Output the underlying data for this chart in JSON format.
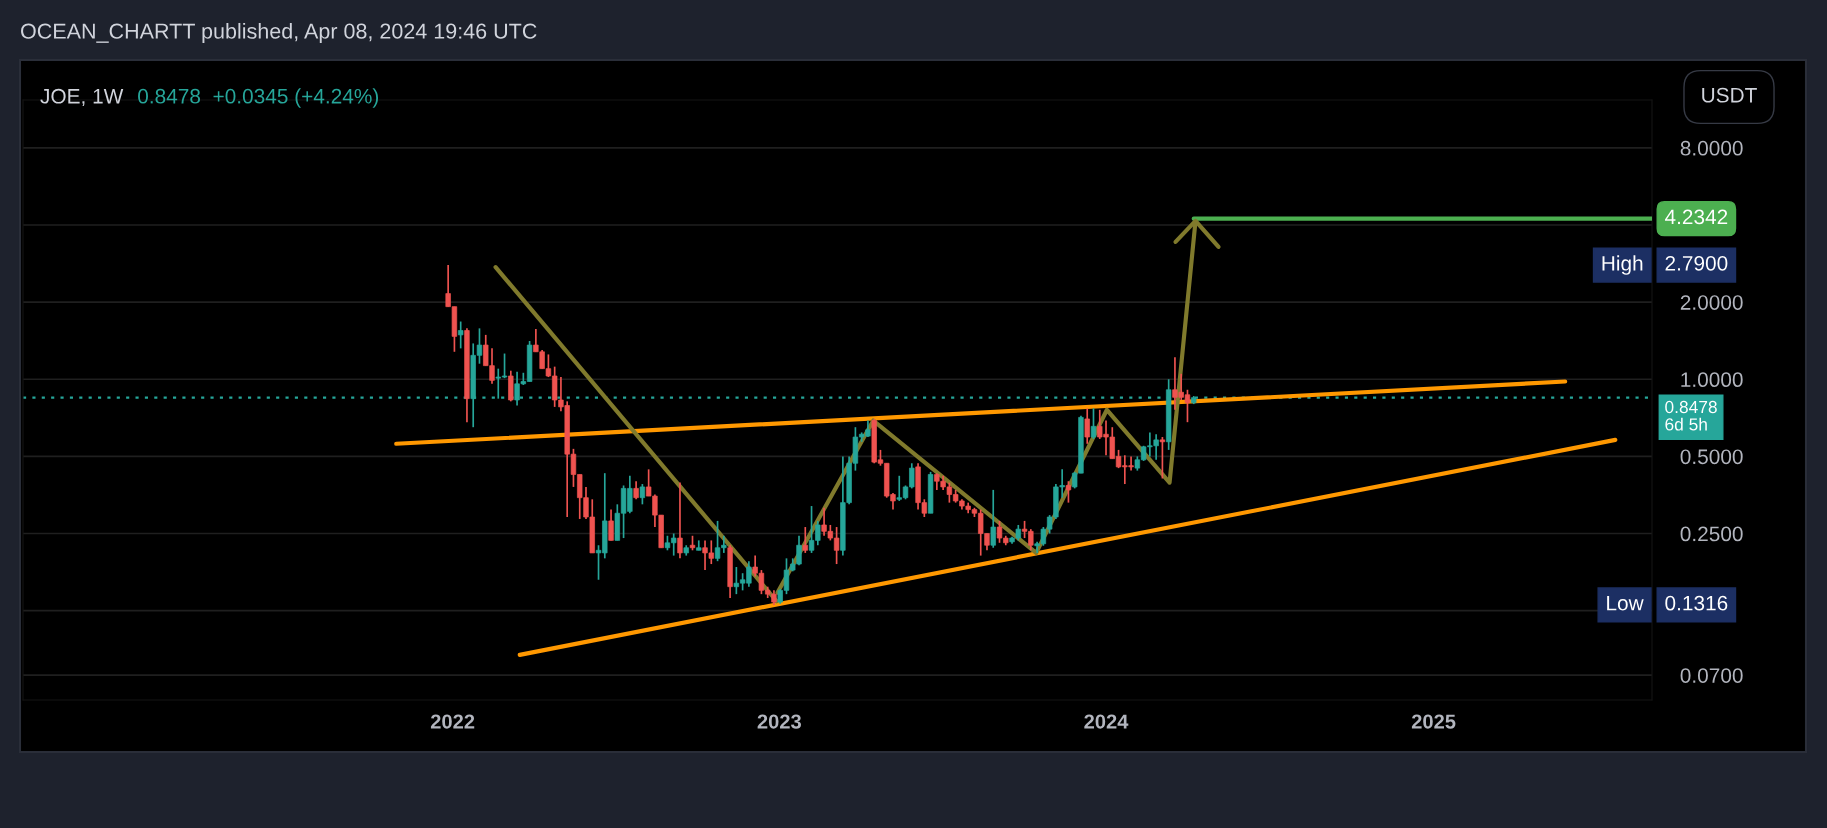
{
  "chart_data": {
    "type": "candlestick",
    "title": "JOE, 1W",
    "subtitle": "0.8478  +0.0345 (+4.24%)",
    "annotations": [
      "OCEAN_CHARTT published, Apr 08, 2024 19:46 UTC",
      "USDT",
      "High",
      "2.7900",
      "Low",
      "0.1316"
    ],
    "colors": [
      "#ef5350",
      "#ef5350",
      "#26a69a",
      "#ef5350",
      "#26a69a",
      "#26a69a",
      "#ef5350",
      "#ef5350",
      "#26a69a",
      "#26a69a",
      "#ef5350",
      "#26a69a",
      "#26a69a",
      "#26a69a",
      "#ef5350",
      "#ef5350",
      "#ef5350",
      "#ef5350",
      "#ef5350",
      "#ef5350",
      "#ef5350",
      "#ef5350",
      "#ef5350",
      "#ef5350",
      "#26a69a",
      "#26a69a",
      "#ef5350",
      "#26a69a",
      "#26a69a",
      "#26a69a",
      "#ef5350",
      "#26a69a",
      "#ef5350",
      "#ef5350",
      "#ef5350",
      "#26a69a",
      "#26a69a",
      "#ef5350",
      "#26a69a",
      "#ef5350",
      "#26a69a",
      "#ef5350",
      "#ef5350",
      "#26a69a",
      "#26a69a",
      "#ef5350",
      "#26a69a",
      "#26a69a",
      "#26a69a",
      "#ef5350",
      "#ef5350",
      "#ef5350",
      "#ef5350",
      "#26a69a",
      "#26a69a",
      "#26a69a",
      "#26a69a",
      "#ef5350",
      "#26a69a",
      "#26a69a",
      "#ef5350",
      "#ef5350",
      "#ef5350",
      "#26a69a",
      "#26a69a",
      "#26a69a",
      "#26a69a",
      "#26a69a",
      "#ef5350",
      "#ef5350",
      "#ef5350",
      "#ef5350",
      "#26a69a",
      "#26a69a",
      "#26a69a",
      "#ef5350",
      "#ef5350",
      "#26a69a",
      "#ef5350",
      "#ef5350",
      "#ef5350",
      "#ef5350",
      "#ef5350",
      "#ef5350",
      "#ef5350",
      "#ef5350",
      "#ef5350",
      "#26a69a",
      "#ef5350",
      "#ef5350",
      "#26a69a",
      "#26a69a",
      "#ef5350",
      "#ef5350",
      "#26a69a",
      "#26a69a",
      "#26a69a",
      "#26a69a",
      "#26a69a",
      "#ef5350",
      "#26a69a",
      "#26a69a",
      "#ef5350",
      "#26a69a",
      "#ef5350",
      "#ef5350",
      "#ef5350",
      "#ef5350",
      "#ef5350",
      "#ef5350",
      "#26a69a",
      "#26a69a",
      "#26a69a",
      "#26a69a",
      "#ef5350",
      "#26a69a",
      "#ef5350",
      "#ef5350",
      "#ef5350",
      "#26a69a"
    ],
    "x": [
      "2021-12-27",
      "2022-01-03",
      "2022-01-10",
      "2022-01-17",
      "2022-01-24",
      "2022-01-31",
      "2022-02-07",
      "2022-02-14",
      "2022-02-21",
      "2022-02-28",
      "2022-03-07",
      "2022-03-14",
      "2022-03-21",
      "2022-03-28",
      "2022-04-04",
      "2022-04-11",
      "2022-04-18",
      "2022-04-25",
      "2022-05-02",
      "2022-05-09",
      "2022-05-16",
      "2022-05-23",
      "2022-05-30",
      "2022-06-06",
      "2022-06-13",
      "2022-06-20",
      "2022-06-27",
      "2022-07-04",
      "2022-07-11",
      "2022-07-18",
      "2022-07-25",
      "2022-08-01",
      "2022-08-08",
      "2022-08-15",
      "2022-08-22",
      "2022-08-29",
      "2022-09-05",
      "2022-09-12",
      "2022-09-19",
      "2022-09-26",
      "2022-10-03",
      "2022-10-10",
      "2022-10-17",
      "2022-10-24",
      "2022-10-31",
      "2022-11-07",
      "2022-11-14",
      "2022-11-21",
      "2022-11-28",
      "2022-12-05",
      "2022-12-12",
      "2022-12-19",
      "2022-12-26",
      "2023-01-02",
      "2023-01-09",
      "2023-01-16",
      "2023-01-23",
      "2023-01-30",
      "2023-02-06",
      "2023-02-13",
      "2023-02-20",
      "2023-02-27",
      "2023-03-06",
      "2023-03-13",
      "2023-03-20",
      "2023-03-27",
      "2023-04-03",
      "2023-04-10",
      "2023-04-17",
      "2023-04-24",
      "2023-05-01",
      "2023-05-08",
      "2023-05-15",
      "2023-05-22",
      "2023-05-29",
      "2023-06-05",
      "2023-06-12",
      "2023-06-19",
      "2023-06-26",
      "2023-07-03",
      "2023-07-10",
      "2023-07-17",
      "2023-07-24",
      "2023-07-31",
      "2023-08-07",
      "2023-08-14",
      "2023-08-21",
      "2023-08-28",
      "2023-09-04",
      "2023-09-11",
      "2023-09-18",
      "2023-09-25",
      "2023-10-02",
      "2023-10-09",
      "2023-10-16",
      "2023-10-23",
      "2023-10-30",
      "2023-11-06",
      "2023-11-13",
      "2023-11-20",
      "2023-11-27",
      "2023-12-04",
      "2023-12-11",
      "2023-12-18",
      "2023-12-25",
      "2024-01-01",
      "2024-01-08",
      "2024-01-15",
      "2024-01-22",
      "2024-01-29",
      "2024-02-05",
      "2024-02-12",
      "2024-02-19",
      "2024-02-26",
      "2024-03-04",
      "2024-03-11",
      "2024-03-18",
      "2024-03-25",
      "2024-04-01",
      "2024-04-08"
    ],
    "ohlc": [
      [
        2.16,
        2.79,
        1.92,
        1.92
      ],
      [
        1.92,
        1.92,
        1.28,
        1.47
      ],
      [
        1.49,
        1.68,
        1.32,
        1.55
      ],
      [
        1.55,
        1.58,
        0.68,
        0.84
      ],
      [
        0.84,
        1.38,
        0.65,
        1.24
      ],
      [
        1.24,
        1.58,
        1.15,
        1.36
      ],
      [
        1.36,
        1.49,
        1.13,
        1.13
      ],
      [
        1.13,
        1.32,
        0.96,
        0.99
      ],
      [
        1.01,
        1.1,
        0.84,
        1.02
      ],
      [
        1.02,
        1.26,
        1.01,
        1.03
      ],
      [
        1.03,
        1.08,
        0.82,
        0.83
      ],
      [
        0.83,
        1.07,
        0.79,
        0.96
      ],
      [
        0.96,
        1.06,
        0.95,
        0.98
      ],
      [
        0.98,
        1.41,
        0.98,
        1.36
      ],
      [
        1.36,
        1.57,
        1.28,
        1.28
      ],
      [
        1.28,
        1.3,
        1.1,
        1.1
      ],
      [
        1.1,
        1.25,
        1.02,
        1.03
      ],
      [
        1.03,
        1.12,
        0.78,
        0.83
      ],
      [
        0.83,
        1.02,
        0.75,
        0.78
      ],
      [
        0.79,
        0.82,
        0.29,
        0.51
      ],
      [
        0.51,
        0.535,
        0.38,
        0.425
      ],
      [
        0.425,
        0.425,
        0.285,
        0.345
      ],
      [
        0.345,
        0.38,
        0.285,
        0.29
      ],
      [
        0.29,
        0.34,
        0.21,
        0.21
      ],
      [
        0.21,
        0.225,
        0.165,
        0.215
      ],
      [
        0.21,
        0.43,
        0.2,
        0.28
      ],
      [
        0.28,
        0.31,
        0.235,
        0.235
      ],
      [
        0.235,
        0.325,
        0.235,
        0.3
      ],
      [
        0.3,
        0.385,
        0.24,
        0.375
      ],
      [
        0.305,
        0.42,
        0.3,
        0.375
      ],
      [
        0.375,
        0.4,
        0.34,
        0.345
      ],
      [
        0.345,
        0.39,
        0.325,
        0.38
      ],
      [
        0.38,
        0.445,
        0.35,
        0.35
      ],
      [
        0.35,
        0.355,
        0.265,
        0.295
      ],
      [
        0.295,
        0.295,
        0.22,
        0.22
      ],
      [
        0.22,
        0.245,
        0.215,
        0.23
      ],
      [
        0.23,
        0.25,
        0.205,
        0.24
      ],
      [
        0.24,
        0.395,
        0.2,
        0.21
      ],
      [
        0.21,
        0.225,
        0.205,
        0.22
      ],
      [
        0.225,
        0.245,
        0.215,
        0.22
      ],
      [
        0.215,
        0.235,
        0.215,
        0.22
      ],
      [
        0.22,
        0.235,
        0.18,
        0.21
      ],
      [
        0.21,
        0.235,
        0.19,
        0.2
      ],
      [
        0.2,
        0.28,
        0.195,
        0.22
      ],
      [
        0.22,
        0.245,
        0.21,
        0.225
      ],
      [
        0.22,
        0.225,
        0.14,
        0.155
      ],
      [
        0.155,
        0.185,
        0.145,
        0.16
      ],
      [
        0.16,
        0.175,
        0.15,
        0.165
      ],
      [
        0.16,
        0.195,
        0.155,
        0.185
      ],
      [
        0.185,
        0.205,
        0.17,
        0.175
      ],
      [
        0.175,
        0.18,
        0.145,
        0.15
      ],
      [
        0.15,
        0.155,
        0.14,
        0.145
      ],
      [
        0.145,
        0.15,
        0.1316,
        0.135
      ],
      [
        0.135,
        0.152,
        0.133,
        0.15
      ],
      [
        0.15,
        0.2,
        0.145,
        0.18
      ],
      [
        0.18,
        0.2,
        0.178,
        0.19
      ],
      [
        0.19,
        0.245,
        0.188,
        0.225
      ],
      [
        0.225,
        0.265,
        0.21,
        0.215
      ],
      [
        0.215,
        0.32,
        0.21,
        0.235
      ],
      [
        0.235,
        0.28,
        0.225,
        0.27
      ],
      [
        0.27,
        0.315,
        0.245,
        0.255
      ],
      [
        0.255,
        0.27,
        0.235,
        0.24
      ],
      [
        0.24,
        0.265,
        0.19,
        0.215
      ],
      [
        0.215,
        0.5,
        0.205,
        0.33
      ],
      [
        0.33,
        0.5,
        0.325,
        0.47
      ],
      [
        0.47,
        0.65,
        0.44,
        0.595
      ],
      [
        0.595,
        0.62,
        0.57,
        0.61
      ],
      [
        0.6,
        0.69,
        0.595,
        0.635
      ],
      [
        0.69,
        0.7,
        0.47,
        0.475
      ],
      [
        0.485,
        0.53,
        0.46,
        0.47
      ],
      [
        0.47,
        0.47,
        0.345,
        0.35
      ],
      [
        0.355,
        0.36,
        0.31,
        0.335
      ],
      [
        0.34,
        0.42,
        0.335,
        0.345
      ],
      [
        0.345,
        0.385,
        0.34,
        0.38
      ],
      [
        0.38,
        0.47,
        0.375,
        0.45
      ],
      [
        0.455,
        0.47,
        0.31,
        0.33
      ],
      [
        0.33,
        0.34,
        0.29,
        0.3
      ],
      [
        0.3,
        0.435,
        0.3,
        0.425
      ],
      [
        0.425,
        0.43,
        0.37,
        0.4
      ],
      [
        0.4,
        0.42,
        0.37,
        0.38
      ],
      [
        0.38,
        0.395,
        0.33,
        0.355
      ],
      [
        0.355,
        0.37,
        0.33,
        0.335
      ],
      [
        0.335,
        0.34,
        0.31,
        0.32
      ],
      [
        0.32,
        0.33,
        0.3,
        0.31
      ],
      [
        0.31,
        0.315,
        0.29,
        0.3
      ],
      [
        0.3,
        0.31,
        0.205,
        0.25
      ],
      [
        0.25,
        0.25,
        0.215,
        0.225
      ],
      [
        0.225,
        0.37,
        0.22,
        0.265
      ],
      [
        0.265,
        0.28,
        0.23,
        0.24
      ],
      [
        0.24,
        0.245,
        0.225,
        0.23
      ],
      [
        0.232,
        0.243,
        0.228,
        0.24
      ],
      [
        0.24,
        0.27,
        0.235,
        0.26
      ],
      [
        0.26,
        0.28,
        0.24,
        0.255
      ],
      [
        0.255,
        0.26,
        0.215,
        0.225
      ],
      [
        0.224,
        0.232,
        0.21,
        0.228
      ],
      [
        0.228,
        0.265,
        0.224,
        0.26
      ],
      [
        0.26,
        0.295,
        0.25,
        0.29
      ],
      [
        0.29,
        0.39,
        0.285,
        0.38
      ],
      [
        0.38,
        0.445,
        0.345,
        0.385
      ],
      [
        0.385,
        0.4,
        0.33,
        0.37
      ],
      [
        0.38,
        0.435,
        0.375,
        0.43
      ],
      [
        0.43,
        0.72,
        0.43,
        0.71
      ],
      [
        0.7,
        0.77,
        0.56,
        0.595
      ],
      [
        0.595,
        0.77,
        0.585,
        0.655
      ],
      [
        0.655,
        0.76,
        0.585,
        0.595
      ],
      [
        0.61,
        0.69,
        0.505,
        0.595
      ],
      [
        0.595,
        0.65,
        0.49,
        0.49
      ],
      [
        0.5,
        0.53,
        0.45,
        0.455
      ],
      [
        0.46,
        0.505,
        0.39,
        0.455
      ],
      [
        0.46,
        0.5,
        0.44,
        0.455
      ],
      [
        0.45,
        0.5,
        0.44,
        0.485
      ],
      [
        0.485,
        0.55,
        0.48,
        0.545
      ],
      [
        0.545,
        0.62,
        0.5,
        0.55
      ],
      [
        0.55,
        0.61,
        0.485,
        0.58
      ],
      [
        0.58,
        0.595,
        0.41,
        0.57
      ],
      [
        0.57,
        1.0,
        0.53,
        0.91
      ],
      [
        0.91,
        1.22,
        0.76,
        0.85
      ],
      [
        0.89,
        1.05,
        0.83,
        0.85
      ],
      [
        0.87,
        0.91,
        0.68,
        0.81
      ],
      [
        0.81,
        0.86,
        0.8,
        0.8478
      ]
    ],
    "series": [
      {
        "type": "line",
        "color": "#ff9800",
        "x": [
          "2021-10-30",
          "2025-05-28"
        ],
        "values": [
          0.56,
          0.98
        ]
      },
      {
        "type": "line",
        "color": "#ff9800",
        "x": [
          "2022-03-17",
          "2025-07-23"
        ],
        "values": [
          0.084,
          0.58
        ]
      },
      {
        "type": "line",
        "color": "#807a2c",
        "x": [
          "2022-02-18",
          "2022-12-29"
        ],
        "values": [
          2.74,
          0.136
        ]
      },
      {
        "type": "line",
        "color": "#807a2c",
        "x": [
          "2022-12-30",
          "2023-04-16",
          "2023-10-15",
          "2024-01-02",
          "2024-03-12",
          "2024-04-10"
        ],
        "values": [
          0.147,
          0.69,
          0.21,
          0.76,
          0.395,
          4.15
        ]
      },
      {
        "type": "line",
        "color": "#4caf50",
        "x": [
          "2024-04-08",
          "2025-09-02"
        ],
        "values": [
          4.2342,
          4.2342
        ],
        "value_labels": [
          null,
          "4.2342"
        ]
      }
    ],
    "ref_lines": [
      {
        "axis": "y",
        "value": 0.8478,
        "label": "0.8478\n6d 5h",
        "color": "#26a69a",
        "line_style": "dotted"
      }
    ],
    "log": true,
    "xlim": [
      "2020-09-08",
      "2025-09-02"
    ],
    "xticks": [
      {
        "value": "2022-01-01",
        "label": "2022"
      },
      {
        "value": "2023-01-01",
        "label": "2023"
      },
      {
        "value": "2024-01-01",
        "label": "2024"
      },
      {
        "value": "2025-01-01",
        "label": "2025"
      }
    ],
    "ylim": [
      0.056,
      12.3
    ],
    "yticks": [
      {
        "value": 8,
        "label": "8.0000"
      },
      {
        "value": 4,
        "label": null
      },
      {
        "value": 2,
        "label": "2.0000"
      },
      {
        "value": 1,
        "label": "1.0000"
      },
      {
        "value": 0.5,
        "label": "0.5000"
      },
      {
        "value": 0.25,
        "label": "0.2500"
      },
      {
        "value": 0.125,
        "label": null
      },
      {
        "value": 0.07,
        "label": "0.0700"
      }
    ],
    "grid": "y"
  }
}
